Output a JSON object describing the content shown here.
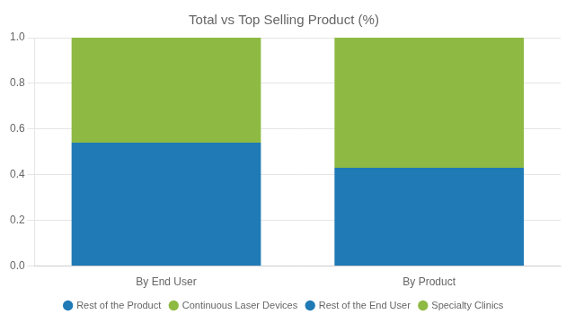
{
  "chart_data": {
    "type": "bar",
    "title": "Total vs Top Selling Product (%)",
    "categories": [
      "By End User",
      "By Product"
    ],
    "series": [
      {
        "name": "Rest of the Product",
        "color": "#1f7ab5",
        "values": [
          0.54,
          null
        ]
      },
      {
        "name": "Continuous Laser Devices",
        "color": "#8eba43",
        "values": [
          0.46,
          null
        ]
      },
      {
        "name": "Rest of the End User",
        "color": "#1f7ab5",
        "values": [
          null,
          0.43
        ]
      },
      {
        "name": "Specialty Clinics",
        "color": "#8eba43",
        "values": [
          null,
          0.57
        ]
      }
    ],
    "stacked": true,
    "ylim": [
      0.0,
      1.0
    ],
    "yticks": [
      {
        "value": 0,
        "label": "0.0"
      },
      0.2,
      0.4,
      0.6,
      0.8,
      {
        "value": 1,
        "label": "1.0"
      }
    ],
    "grid": true,
    "legend": "bottom"
  }
}
